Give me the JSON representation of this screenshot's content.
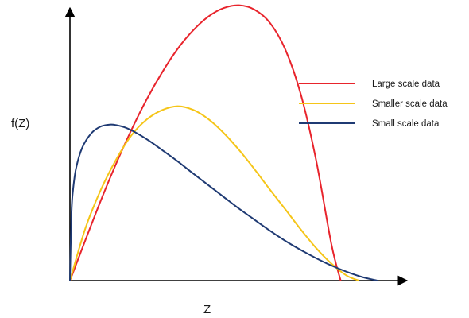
{
  "chart_data": {
    "type": "line",
    "title": "",
    "xlabel": "Z",
    "ylabel": "f(Z)",
    "xlim": [
      0,
      100
    ],
    "ylim": [
      0,
      100
    ],
    "grid": false,
    "legend_position": "right",
    "series": [
      {
        "name": "Large scale data",
        "color": "#e8242c",
        "x": [
          0,
          5,
          10,
          15,
          20,
          25,
          30,
          35,
          40,
          45,
          50,
          55,
          60,
          65,
          70,
          75,
          80,
          85,
          88
        ],
        "y": [
          0,
          14.7,
          29.1,
          42.6,
          55.0,
          66.2,
          76.0,
          84.5,
          91.2,
          96.3,
          99.4,
          100.4,
          98.8,
          94.0,
          84.3,
          68.1,
          44.0,
          13.2,
          0
        ]
      },
      {
        "name": "Smaller scale data",
        "color": "#f5c518",
        "x": [
          0,
          5,
          10,
          15,
          20,
          25,
          30,
          35,
          40,
          45,
          50,
          55,
          60,
          65,
          70,
          75,
          80,
          85,
          90,
          94
        ],
        "y": [
          0,
          19.0,
          33.0,
          44.1,
          53.0,
          58.8,
          62.2,
          63.6,
          62.3,
          58.9,
          53.8,
          47.6,
          40.6,
          33.2,
          26.0,
          18.7,
          11.9,
          6.2,
          1.8,
          0
        ]
      },
      {
        "name": "Small scale data",
        "color": "#1f3a73",
        "x": [
          0,
          0.5,
          1,
          2,
          4,
          7,
          10,
          13,
          15,
          18,
          22,
          26,
          30,
          35,
          40,
          45,
          50,
          55,
          60,
          65,
          70,
          75,
          80,
          85,
          90,
          95,
          100
        ],
        "y": [
          0,
          24.5,
          33.0,
          41.0,
          48.5,
          53.8,
          56.2,
          56.9,
          56.7,
          55.8,
          53.6,
          50.8,
          47.6,
          43.5,
          39.1,
          34.8,
          30.5,
          26.2,
          22.2,
          18.2,
          14.5,
          11.2,
          8.2,
          5.5,
          3.2,
          1.3,
          0
        ]
      }
    ]
  }
}
